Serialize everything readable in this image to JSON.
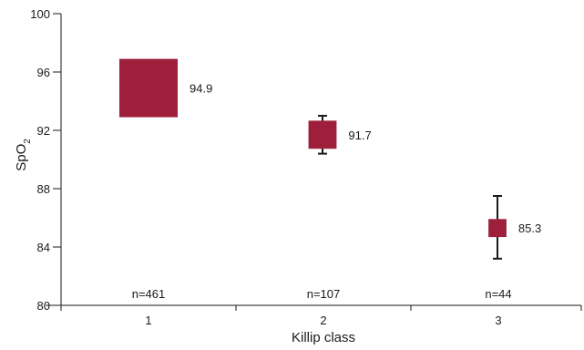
{
  "chart_data": {
    "type": "scatter",
    "xlabel": "Killip class",
    "ylabel": "SpO",
    "ylabel_subscript": "2",
    "ylim": [
      80,
      100
    ],
    "yticks": [
      "80",
      "84",
      "88",
      "92",
      "96",
      "100"
    ],
    "categories": [
      "1",
      "2",
      "3"
    ],
    "series": [
      {
        "values": [
          94.9,
          91.7,
          85.3
        ],
        "error_low": [
          null,
          90.4,
          83.2
        ],
        "error_high": [
          null,
          93.0,
          87.5
        ],
        "value_labels": [
          "94.9",
          "91.7",
          "85.3"
        ],
        "n_labels": [
          "n=461",
          "n=107",
          "n=44"
        ],
        "n": [
          461,
          107,
          44
        ]
      }
    ],
    "marker_color": "#9e1f3c",
    "errorbar_color": "#1a1a1a"
  }
}
